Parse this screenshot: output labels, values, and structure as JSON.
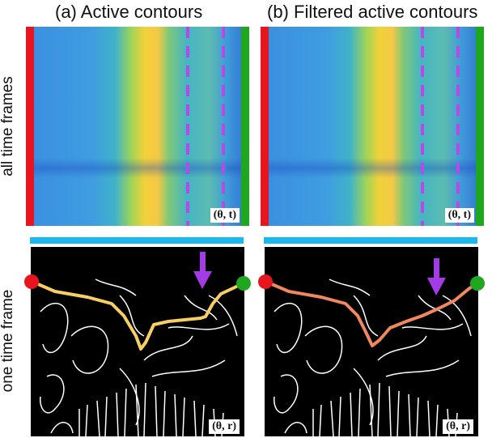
{
  "titles": {
    "a": "(a) Active contours",
    "b": "(b) Filtered active contours"
  },
  "row_labels": {
    "top": "all time frames",
    "bottom": "one time frame"
  },
  "coord_labels": {
    "theta_t": "(θ, t)",
    "theta_r": "(θ, r)"
  },
  "colors": {
    "left_bar": "#e8141e",
    "right_bar": "#1fa81f",
    "cyan_bar": "#19b8ee",
    "dashed_lines": "#b54ae8",
    "arrow": "#a53be6",
    "contour_a": "#f7cf63",
    "contour_b": "#f0875f",
    "endpoint_left": "#e8141e",
    "endpoint_right": "#1fa81f"
  }
}
